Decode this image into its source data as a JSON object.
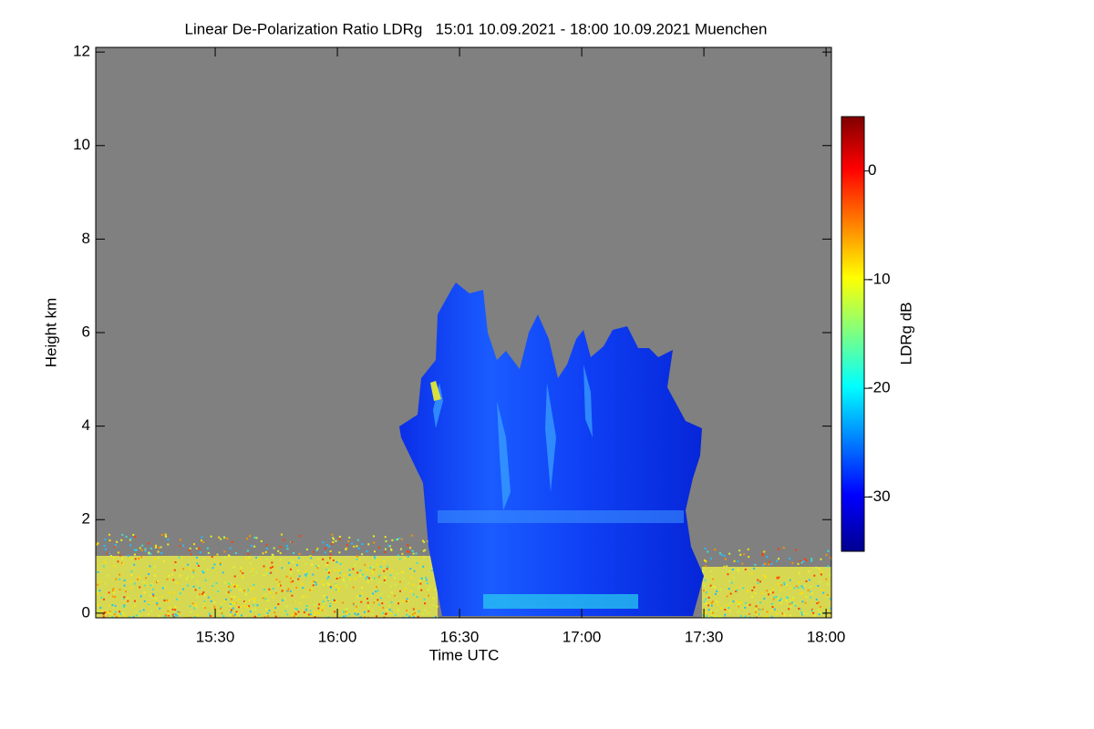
{
  "chart_data": {
    "type": "heatmap",
    "title": "Linear De-Polarization Ratio LDRg   15:01 10.09.2021 - 18:00 10.09.2021 Muenchen",
    "x_label": "Time UTC",
    "y_label": "Height km",
    "xlim": [
      15.011,
      18.022
    ],
    "xticks": [
      {
        "value": 15.5,
        "label": "15:30"
      },
      {
        "value": 16,
        "label": "16:00"
      },
      {
        "value": 16.5,
        "label": "16:30"
      },
      {
        "value": 17,
        "label": "17:00"
      },
      {
        "value": 17.5,
        "label": "17:30"
      },
      {
        "value": 18,
        "label": "18:00"
      }
    ],
    "ylim": [
      -0.1,
      12.1
    ],
    "yticks": [
      0,
      2,
      4,
      6,
      8,
      10,
      12
    ],
    "colorbar": {
      "label": "LDRg dB",
      "lim": [
        -35,
        5
      ],
      "ticks": [
        0,
        -10,
        -20,
        -30
      ]
    }
  }
}
